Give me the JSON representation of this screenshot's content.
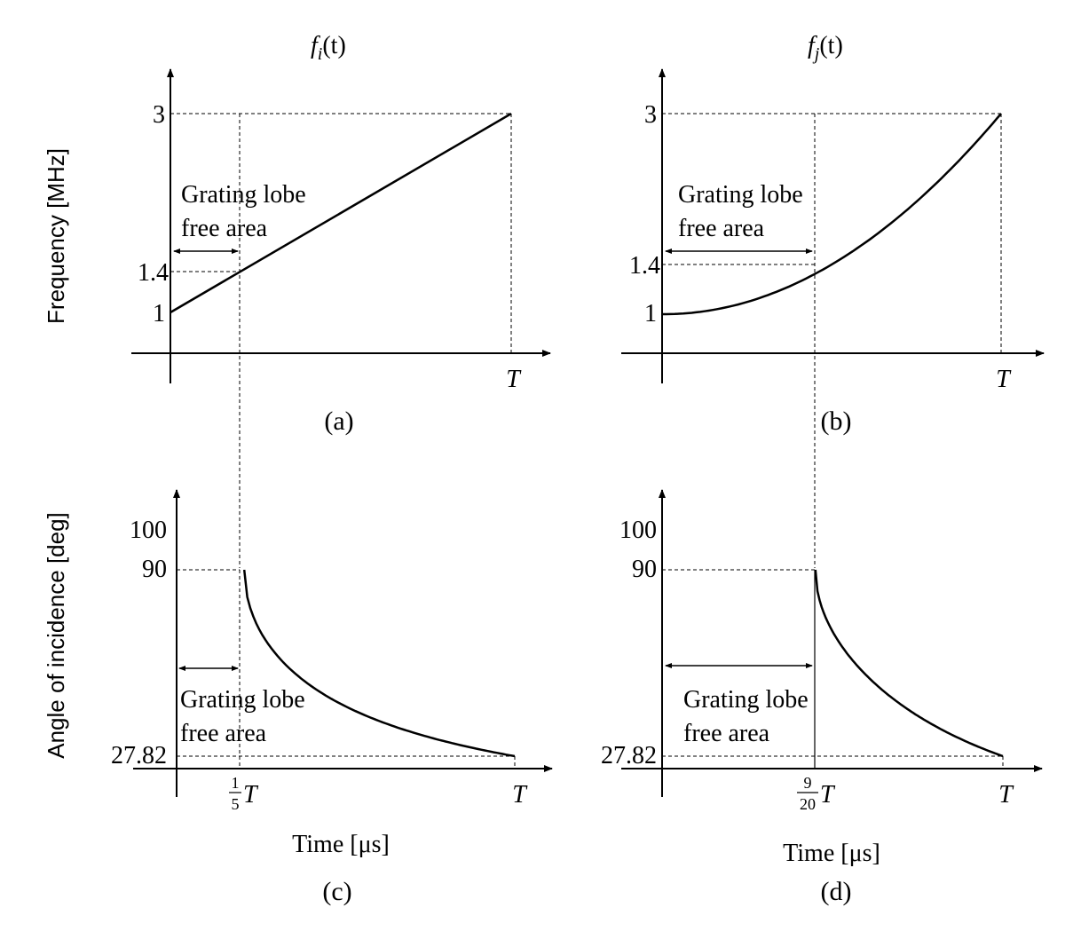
{
  "chart_data": [
    {
      "panel": "(a)",
      "type": "line",
      "title": "f_i(t)",
      "title_base": "f",
      "title_sub": "i",
      "title_arg": "(t)",
      "caption": "(a)",
      "ylabel": "Frequency  [MHz]",
      "xlabel": "",
      "x_ticks": [
        "T"
      ],
      "y_ticks": [
        "3",
        "1.4",
        "1"
      ],
      "curve": "linear",
      "x": [
        0,
        0.2,
        1
      ],
      "y": [
        1,
        1.4,
        3
      ],
      "annotation": [
        "Grating lobe",
        "free area"
      ],
      "free_area_end": 0.2
    },
    {
      "panel": "(b)",
      "type": "line",
      "title": "f_j(t)",
      "title_base": "f",
      "title_sub": "j",
      "title_arg": "(t)",
      "caption": "(b)",
      "ylabel": "",
      "xlabel": "",
      "x_ticks": [
        "T"
      ],
      "y_ticks": [
        "3",
        "1.4",
        "1"
      ],
      "curve": "quadratic",
      "x": [
        0,
        0.45,
        1
      ],
      "y": [
        1,
        1.4,
        3
      ],
      "annotation": [
        "Grating lobe",
        "free area"
      ],
      "free_area_end": 0.45
    },
    {
      "panel": "(c)",
      "type": "line",
      "title": "",
      "caption": "(c)",
      "ylabel": "Angle of incidence  [deg]",
      "xlabel": "Time [μs]",
      "x_ticks": [
        "T"
      ],
      "x_tick_fraction": {
        "num": "1",
        "den": "5",
        "var": "T"
      },
      "y_ticks": [
        "100",
        "90",
        "27.82"
      ],
      "x": [
        0.2,
        1
      ],
      "y": [
        90,
        27.82
      ],
      "annotation": [
        "Grating lobe",
        "free area"
      ],
      "free_area_end": 0.2
    },
    {
      "panel": "(d)",
      "type": "line",
      "title": "",
      "caption": "(d)",
      "ylabel": "",
      "xlabel": "Time [μs]",
      "x_ticks": [
        "T"
      ],
      "x_tick_fraction": {
        "num": "9",
        "den": "20",
        "var": "T"
      },
      "y_ticks": [
        "100",
        "90",
        "27.82"
      ],
      "x": [
        0.45,
        1
      ],
      "y": [
        90,
        27.82
      ],
      "annotation": [
        "Grating lobe",
        "free area"
      ],
      "free_area_end": 0.45
    }
  ]
}
